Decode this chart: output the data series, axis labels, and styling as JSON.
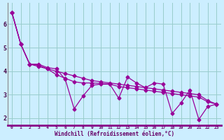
{
  "xlabel": "Windchill (Refroidissement éolien,°C)",
  "bg_color": "#cceeff",
  "grid_color": "#99cccc",
  "line_color": "#990099",
  "marker_color": "#990099",
  "xlim": [
    -0.5,
    23.5
  ],
  "ylim": [
    1.7,
    6.9
  ],
  "yticks": [
    2,
    3,
    4,
    5,
    6
  ],
  "xticks": [
    0,
    1,
    2,
    3,
    4,
    5,
    6,
    7,
    8,
    9,
    10,
    11,
    12,
    13,
    14,
    15,
    16,
    17,
    18,
    19,
    20,
    21,
    22,
    23
  ],
  "series1": [
    [
      0,
      6.5
    ],
    [
      1,
      5.15
    ],
    [
      2,
      4.3
    ],
    [
      3,
      4.3
    ],
    [
      4,
      4.15
    ],
    [
      5,
      4.1
    ],
    [
      6,
      3.65
    ],
    [
      7,
      2.4
    ],
    [
      8,
      2.95
    ],
    [
      9,
      3.4
    ],
    [
      10,
      3.45
    ],
    [
      11,
      3.45
    ],
    [
      12,
      2.85
    ],
    [
      13,
      3.75
    ],
    [
      14,
      3.5
    ],
    [
      15,
      3.3
    ],
    [
      16,
      3.5
    ],
    [
      17,
      3.45
    ],
    [
      18,
      2.2
    ],
    [
      19,
      2.65
    ],
    [
      20,
      3.2
    ],
    [
      21,
      1.95
    ],
    [
      22,
      2.5
    ],
    [
      23,
      2.6
    ]
  ],
  "series2": [
    [
      0,
      6.5
    ],
    [
      1,
      5.15
    ],
    [
      2,
      4.3
    ],
    [
      3,
      4.25
    ],
    [
      4,
      4.1
    ],
    [
      5,
      3.85
    ],
    [
      6,
      3.7
    ],
    [
      7,
      3.55
    ],
    [
      8,
      3.5
    ],
    [
      9,
      3.5
    ],
    [
      10,
      3.48
    ],
    [
      11,
      3.45
    ],
    [
      12,
      3.35
    ],
    [
      13,
      3.3
    ],
    [
      14,
      3.25
    ],
    [
      15,
      3.2
    ],
    [
      16,
      3.15
    ],
    [
      17,
      3.1
    ],
    [
      18,
      3.05
    ],
    [
      19,
      3.0
    ],
    [
      20,
      2.95
    ],
    [
      21,
      2.9
    ],
    [
      22,
      2.7
    ],
    [
      23,
      2.6
    ]
  ],
  "series3": [
    [
      0,
      6.5
    ],
    [
      1,
      5.15
    ],
    [
      2,
      4.3
    ],
    [
      3,
      4.2
    ],
    [
      4,
      4.1
    ],
    [
      5,
      4.0
    ],
    [
      6,
      3.9
    ],
    [
      7,
      3.8
    ],
    [
      8,
      3.7
    ],
    [
      9,
      3.6
    ],
    [
      10,
      3.55
    ],
    [
      11,
      3.5
    ],
    [
      12,
      3.45
    ],
    [
      13,
      3.4
    ],
    [
      14,
      3.35
    ],
    [
      15,
      3.3
    ],
    [
      16,
      3.25
    ],
    [
      17,
      3.2
    ],
    [
      18,
      3.15
    ],
    [
      19,
      3.1
    ],
    [
      20,
      3.05
    ],
    [
      21,
      3.0
    ],
    [
      22,
      2.75
    ],
    [
      23,
      2.6
    ]
  ]
}
